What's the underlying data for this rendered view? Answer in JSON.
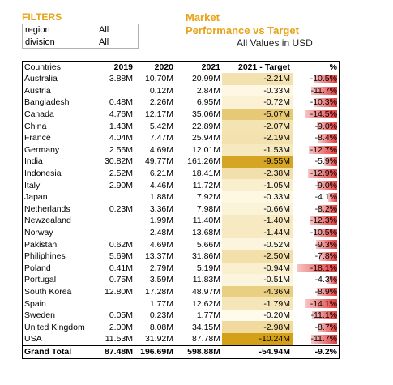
{
  "filters": {
    "title": "FILTERS",
    "items": [
      {
        "field": "region",
        "value": "All"
      },
      {
        "field": "division",
        "value": "All"
      }
    ]
  },
  "report": {
    "title_line1": "Market",
    "title_line2": "Performance vs Target",
    "note": "All Values in USD"
  },
  "colors": {
    "accent": "#e6a317",
    "heat_low": "#fffbea",
    "heat_high": "#d4a017",
    "bar_low": "#f6c6c6",
    "bar_high": "#e23b3b"
  },
  "table": {
    "headers": [
      "Countries",
      "2019",
      "2020",
      "2021",
      "2021 - Target",
      "%"
    ],
    "rows": [
      {
        "country": "Australia",
        "y2019": "3.88M",
        "y2020": "10.70M",
        "y2021": "20.99M",
        "diff": "-2.21M",
        "pct": "-10.5%",
        "pct_value": -10.5
      },
      {
        "country": "Austria",
        "y2019": "",
        "y2020": "0.12M",
        "y2021": "2.84M",
        "diff": "-0.33M",
        "pct": "-11.7%",
        "pct_value": -11.7
      },
      {
        "country": "Bangladesh",
        "y2019": "0.48M",
        "y2020": "2.26M",
        "y2021": "6.95M",
        "diff": "-0.72M",
        "pct": "-10.3%",
        "pct_value": -10.3
      },
      {
        "country": "Canada",
        "y2019": "4.76M",
        "y2020": "12.17M",
        "y2021": "35.06M",
        "diff": "-5.07M",
        "pct": "-14.5%",
        "pct_value": -14.5
      },
      {
        "country": "China",
        "y2019": "1.43M",
        "y2020": "5.42M",
        "y2021": "22.89M",
        "diff": "-2.07M",
        "pct": "-9.0%",
        "pct_value": -9.0
      },
      {
        "country": "France",
        "y2019": "4.04M",
        "y2020": "7.47M",
        "y2021": "25.94M",
        "diff": "-2.19M",
        "pct": "-8.4%",
        "pct_value": -8.4
      },
      {
        "country": "Germany",
        "y2019": "2.56M",
        "y2020": "4.69M",
        "y2021": "12.01M",
        "diff": "-1.53M",
        "pct": "-12.7%",
        "pct_value": -12.7
      },
      {
        "country": "India",
        "y2019": "30.82M",
        "y2020": "49.77M",
        "y2021": "161.26M",
        "diff": "-9.55M",
        "pct": "-5.9%",
        "pct_value": -5.9
      },
      {
        "country": "Indonesia",
        "y2019": "2.52M",
        "y2020": "6.21M",
        "y2021": "18.41M",
        "diff": "-2.38M",
        "pct": "-12.9%",
        "pct_value": -12.9
      },
      {
        "country": "Italy",
        "y2019": "2.90M",
        "y2020": "4.46M",
        "y2021": "11.72M",
        "diff": "-1.05M",
        "pct": "-9.0%",
        "pct_value": -9.0
      },
      {
        "country": "Japan",
        "y2019": "",
        "y2020": "1.88M",
        "y2021": "7.92M",
        "diff": "-0.33M",
        "pct": "-4.1%",
        "pct_value": -4.1
      },
      {
        "country": "Netherlands",
        "y2019": "0.23M",
        "y2020": "3.36M",
        "y2021": "7.98M",
        "diff": "-0.66M",
        "pct": "-8.2%",
        "pct_value": -8.2
      },
      {
        "country": "Newzealand",
        "y2019": "",
        "y2020": "1.99M",
        "y2021": "11.40M",
        "diff": "-1.40M",
        "pct": "-12.3%",
        "pct_value": -12.3
      },
      {
        "country": "Norway",
        "y2019": "",
        "y2020": "2.48M",
        "y2021": "13.68M",
        "diff": "-1.44M",
        "pct": "-10.5%",
        "pct_value": -10.5
      },
      {
        "country": "Pakistan",
        "y2019": "0.62M",
        "y2020": "4.69M",
        "y2021": "5.66M",
        "diff": "-0.52M",
        "pct": "-9.3%",
        "pct_value": -9.3
      },
      {
        "country": "Philiphines",
        "y2019": "5.69M",
        "y2020": "13.37M",
        "y2021": "31.86M",
        "diff": "-2.50M",
        "pct": "-7.8%",
        "pct_value": -7.8
      },
      {
        "country": "Poland",
        "y2019": "0.41M",
        "y2020": "2.79M",
        "y2021": "5.19M",
        "diff": "-0.94M",
        "pct": "-18.1%",
        "pct_value": -18.1
      },
      {
        "country": "Portugal",
        "y2019": "0.75M",
        "y2020": "3.59M",
        "y2021": "11.83M",
        "diff": "-0.51M",
        "pct": "-4.3%",
        "pct_value": -4.3
      },
      {
        "country": "South Korea",
        "y2019": "12.80M",
        "y2020": "17.28M",
        "y2021": "48.97M",
        "diff": "-4.36M",
        "pct": "-8.9%",
        "pct_value": -8.9
      },
      {
        "country": "Spain",
        "y2019": "",
        "y2020": "1.77M",
        "y2021": "12.62M",
        "diff": "-1.79M",
        "pct": "-14.1%",
        "pct_value": -14.1
      },
      {
        "country": "Sweden",
        "y2019": "0.05M",
        "y2020": "0.23M",
        "y2021": "1.77M",
        "diff": "-0.20M",
        "pct": "-11.1%",
        "pct_value": -11.1
      },
      {
        "country": "United Kingdom",
        "y2019": "2.00M",
        "y2020": "8.08M",
        "y2021": "34.15M",
        "diff": "-2.98M",
        "pct": "-8.7%",
        "pct_value": -8.7
      },
      {
        "country": "USA",
        "y2019": "11.53M",
        "y2020": "31.92M",
        "y2021": "87.78M",
        "diff": "-10.24M",
        "pct": "-11.7%",
        "pct_value": -11.7
      }
    ],
    "total": {
      "country": "Grand Total",
      "y2019": "87.48M",
      "y2020": "196.69M",
      "y2021": "598.88M",
      "diff": "-54.94M",
      "pct": "-9.2%"
    }
  }
}
